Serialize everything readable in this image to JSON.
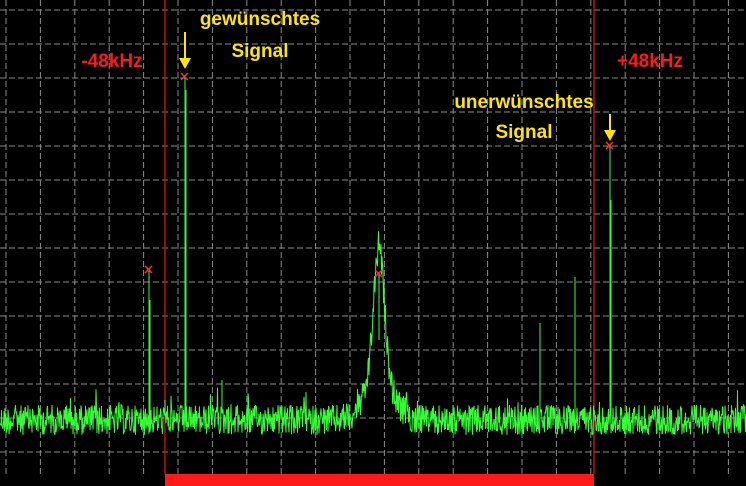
{
  "labels": {
    "desired": [
      "gewünschtes",
      "Signal"
    ],
    "minus": "-48kHz",
    "plus": "+48kHz",
    "undesired": [
      "unerwünschtes",
      "Signal"
    ]
  }
}
